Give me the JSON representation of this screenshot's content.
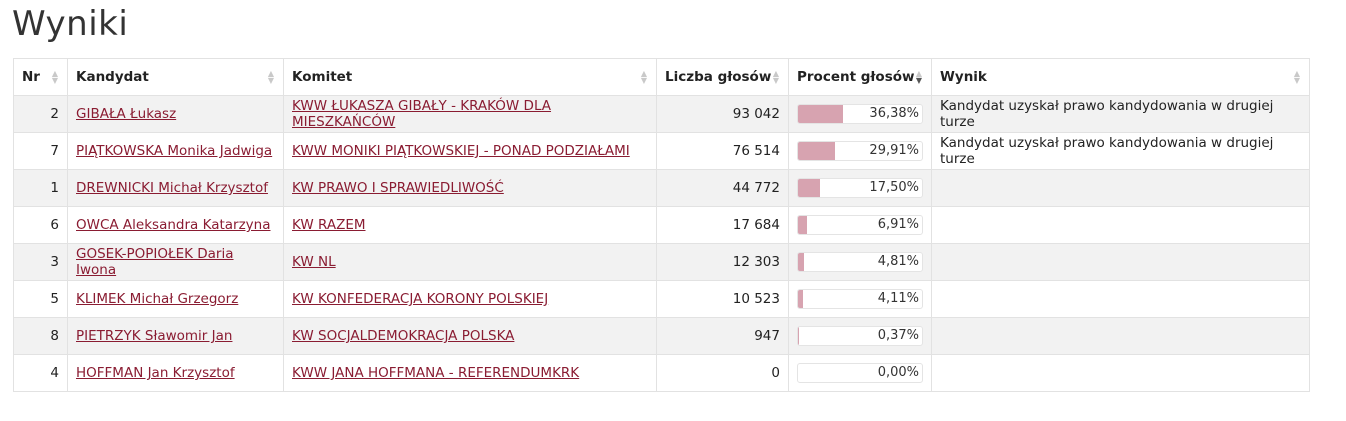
{
  "title": "Wyniki",
  "headers": {
    "nr": "Nr",
    "kandydat": "Kandydat",
    "komitet": "Komitet",
    "liczba": "Liczba głosów",
    "procent": "Procent głosów",
    "wynik": "Wynik"
  },
  "rows": [
    {
      "nr": "2",
      "kandydat": "GIBAŁA Łukasz",
      "komitet": "KWW ŁUKASZA GIBAŁY - KRAKÓW DLA MIESZKAŃCÓW",
      "liczba": "93 042",
      "procent": "36,38%",
      "fill": 36.38,
      "wynik": "Kandydat uzyskał prawo kandydowania w drugiej turze"
    },
    {
      "nr": "7",
      "kandydat": "PIĄTKOWSKA Monika Jadwiga",
      "komitet": "KWW MONIKI PIĄTKOWSKIEJ - PONAD PODZIAŁAMI",
      "liczba": "76 514",
      "procent": "29,91%",
      "fill": 29.91,
      "wynik": "Kandydat uzyskał prawo kandydowania w drugiej turze"
    },
    {
      "nr": "1",
      "kandydat": "DREWNICKI Michał Krzysztof",
      "komitet": "KW PRAWO I SPRAWIEDLIWOŚĆ",
      "liczba": "44 772",
      "procent": "17,50%",
      "fill": 17.5,
      "wynik": ""
    },
    {
      "nr": "6",
      "kandydat": "OWCA Aleksandra Katarzyna",
      "komitet": "KW RAZEM",
      "liczba": "17 684",
      "procent": "6,91%",
      "fill": 6.91,
      "wynik": ""
    },
    {
      "nr": "3",
      "kandydat": "GOSEK-POPIOŁEK Daria Iwona",
      "komitet": "KW NL",
      "liczba": "12 303",
      "procent": "4,81%",
      "fill": 4.81,
      "wynik": ""
    },
    {
      "nr": "5",
      "kandydat": "KLIMEK Michał Grzegorz",
      "komitet": "KW KONFEDERACJA KORONY POLSKIEJ",
      "liczba": "10 523",
      "procent": "4,11%",
      "fill": 4.11,
      "wynik": ""
    },
    {
      "nr": "8",
      "kandydat": "PIETRZYK Sławomir Jan",
      "komitet": "KW SOCJALDEMOKRACJA POLSKA",
      "liczba": "947",
      "procent": "0,37%",
      "fill": 0.37,
      "wynik": ""
    },
    {
      "nr": "4",
      "kandydat": "HOFFMAN Jan Krzysztof",
      "komitet": "KWW JANA HOFFMANA - REFERENDUMKRK",
      "liczba": "0",
      "procent": "0,00%",
      "fill": 0,
      "wynik": ""
    }
  ],
  "colors": {
    "link": "#8a1c32",
    "bar_fill": "#d7a3b0"
  },
  "sort": {
    "active_column": "procent",
    "direction": "descending"
  }
}
